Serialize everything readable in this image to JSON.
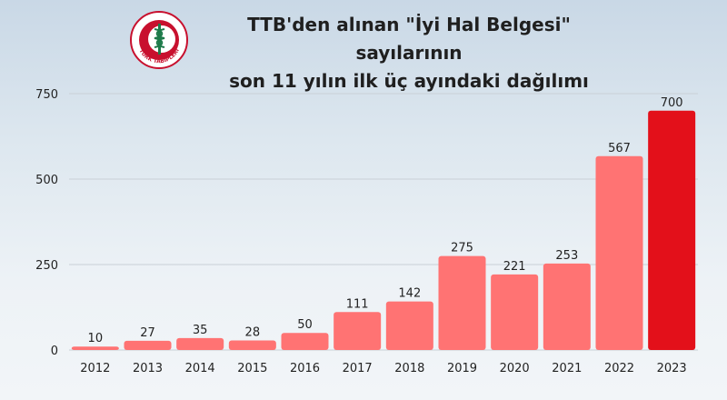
{
  "header": {
    "title_line1": "TTB'den alınan \"İyi Hal Belgesi\" sayılarının",
    "title_line2": "son 11 yılın ilk üç ayındaki dağılımı",
    "logo_text": "TÜRK TABİPLERİ BİRLİĞİ"
  },
  "colors": {
    "bar": "#ff7373",
    "highlight_bar": "#e3101a",
    "grid": "#c9d0d6"
  },
  "chart_data": {
    "type": "bar",
    "title": "TTB'den alınan \"İyi Hal Belgesi\" sayılarının son 11 yılın ilk üç ayındaki dağılımı",
    "categories": [
      "2012",
      "2013",
      "2014",
      "2015",
      "2016",
      "2017",
      "2018",
      "2019",
      "2020",
      "2021",
      "2022",
      "2023"
    ],
    "values": [
      10,
      27,
      35,
      28,
      50,
      111,
      142,
      275,
      221,
      253,
      567,
      700
    ],
    "ylim": [
      0,
      750
    ],
    "yticks": [
      0,
      250,
      500,
      750
    ],
    "grid": true,
    "highlight_index": 11
  }
}
